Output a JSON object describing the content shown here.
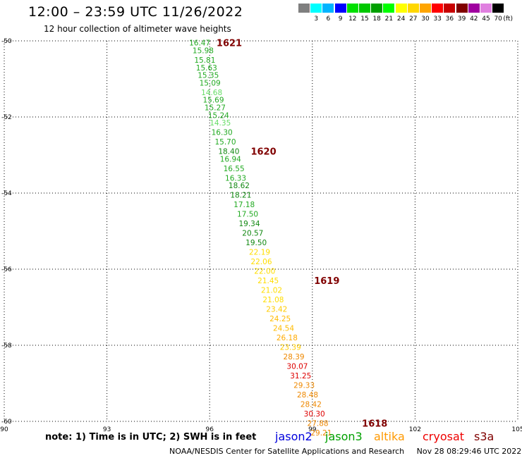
{
  "header": {
    "title": "12:00 – 23:59 UTC 11/26/2022",
    "subtitle": "12 hour collection of altimeter wave heights"
  },
  "color_scale": {
    "unit_label": "(ft)",
    "bins": [
      {
        "label": "",
        "color": "#7f7f7f"
      },
      {
        "label": "3",
        "color": "#00ffff"
      },
      {
        "label": "6",
        "color": "#00b4ff"
      },
      {
        "label": "9",
        "color": "#0000ff"
      },
      {
        "label": "12",
        "color": "#00e000"
      },
      {
        "label": "15",
        "color": "#00c800"
      },
      {
        "label": "18",
        "color": "#00a000"
      },
      {
        "label": "21",
        "color": "#00ff00"
      },
      {
        "label": "24",
        "color": "#ffff00"
      },
      {
        "label": "27",
        "color": "#ffd700"
      },
      {
        "label": "30",
        "color": "#ffa500"
      },
      {
        "label": "33",
        "color": "#ff0000"
      },
      {
        "label": "36",
        "color": "#c80000"
      },
      {
        "label": "39",
        "color": "#800000"
      },
      {
        "label": "42",
        "color": "#a000a0"
      },
      {
        "label": "45",
        "color": "#e080e0"
      },
      {
        "label": "70",
        "color": "#000000"
      }
    ]
  },
  "chart_data": {
    "type": "scatter",
    "xlim": [
      90,
      105
    ],
    "ylim": [
      -60,
      -50
    ],
    "x_ticks": [
      "90",
      "93",
      "96",
      "99",
      "102",
      "105"
    ],
    "y_ticks": [
      "-50",
      "-52",
      "-54",
      "-56",
      "-58",
      "-60"
    ],
    "grid": true,
    "points": [
      {
        "lon": 95.4,
        "lat": -50.05,
        "swh": "16.47",
        "color": "#22aa22"
      },
      {
        "lon": 95.5,
        "lat": -50.25,
        "swh": "15.98",
        "color": "#22aa22"
      },
      {
        "lon": 95.55,
        "lat": -50.5,
        "swh": "15.81",
        "color": "#22aa22"
      },
      {
        "lon": 95.6,
        "lat": -50.7,
        "swh": "15.63",
        "color": "#22aa22"
      },
      {
        "lon": 95.65,
        "lat": -50.9,
        "swh": "15.35",
        "color": "#22aa22"
      },
      {
        "lon": 95.7,
        "lat": -51.1,
        "swh": "15.09",
        "color": "#22aa22"
      },
      {
        "lon": 95.75,
        "lat": -51.35,
        "swh": "14.68",
        "color": "#66dd66"
      },
      {
        "lon": 95.8,
        "lat": -51.55,
        "swh": "15.69",
        "color": "#22aa22"
      },
      {
        "lon": 95.85,
        "lat": -51.75,
        "swh": "15.27",
        "color": "#22aa22"
      },
      {
        "lon": 95.95,
        "lat": -51.95,
        "swh": "15.24",
        "color": "#22aa22"
      },
      {
        "lon": 96.0,
        "lat": -52.15,
        "swh": "14.35",
        "color": "#66dd66"
      },
      {
        "lon": 96.05,
        "lat": -52.4,
        "swh": "16.30",
        "color": "#22aa22"
      },
      {
        "lon": 96.15,
        "lat": -52.65,
        "swh": "15.70",
        "color": "#22aa22"
      },
      {
        "lon": 96.25,
        "lat": -52.9,
        "swh": "18.40",
        "color": "#118811"
      },
      {
        "lon": 96.3,
        "lat": -53.1,
        "swh": "16.94",
        "color": "#22aa22"
      },
      {
        "lon": 96.4,
        "lat": -53.35,
        "swh": "16.55",
        "color": "#22aa22"
      },
      {
        "lon": 96.45,
        "lat": -53.6,
        "swh": "16.33",
        "color": "#22aa22"
      },
      {
        "lon": 96.55,
        "lat": -53.8,
        "swh": "18.62",
        "color": "#118811"
      },
      {
        "lon": 96.6,
        "lat": -54.05,
        "swh": "18.21",
        "color": "#118811"
      },
      {
        "lon": 96.7,
        "lat": -54.3,
        "swh": "17.18",
        "color": "#22aa22"
      },
      {
        "lon": 96.8,
        "lat": -54.55,
        "swh": "17.50",
        "color": "#22aa22"
      },
      {
        "lon": 96.85,
        "lat": -54.8,
        "swh": "19.34",
        "color": "#118811"
      },
      {
        "lon": 96.95,
        "lat": -55.05,
        "swh": "20.57",
        "color": "#118811"
      },
      {
        "lon": 97.05,
        "lat": -55.3,
        "swh": "19.50",
        "color": "#118811"
      },
      {
        "lon": 97.15,
        "lat": -55.55,
        "swh": "22.19",
        "color": "#ffdd00"
      },
      {
        "lon": 97.2,
        "lat": -55.8,
        "swh": "22.06",
        "color": "#ffdd00"
      },
      {
        "lon": 97.3,
        "lat": -56.05,
        "swh": "22.00",
        "color": "#ffdd00"
      },
      {
        "lon": 97.4,
        "lat": -56.3,
        "swh": "21.45",
        "color": "#ffdd00"
      },
      {
        "lon": 97.5,
        "lat": -56.55,
        "swh": "21.02",
        "color": "#ffdd00"
      },
      {
        "lon": 97.55,
        "lat": -56.8,
        "swh": "21.08",
        "color": "#ffdd00"
      },
      {
        "lon": 97.65,
        "lat": -57.05,
        "swh": "23.42",
        "color": "#ffcc00"
      },
      {
        "lon": 97.75,
        "lat": -57.3,
        "swh": "24.25",
        "color": "#ffbb00"
      },
      {
        "lon": 97.85,
        "lat": -57.55,
        "swh": "24.54",
        "color": "#ffbb00"
      },
      {
        "lon": 97.95,
        "lat": -57.8,
        "swh": "26.18",
        "color": "#ffaa00"
      },
      {
        "lon": 98.05,
        "lat": -58.05,
        "swh": "23.39",
        "color": "#ffcc00"
      },
      {
        "lon": 98.15,
        "lat": -58.3,
        "swh": "28.39",
        "color": "#ee8800"
      },
      {
        "lon": 98.25,
        "lat": -58.55,
        "swh": "30.07",
        "color": "#dd0000"
      },
      {
        "lon": 98.35,
        "lat": -58.8,
        "swh": "31.25",
        "color": "#dd0000"
      },
      {
        "lon": 98.45,
        "lat": -59.05,
        "swh": "29.33",
        "color": "#ee8800"
      },
      {
        "lon": 98.55,
        "lat": -59.3,
        "swh": "28.48",
        "color": "#ee8800"
      },
      {
        "lon": 98.65,
        "lat": -59.55,
        "swh": "28.42",
        "color": "#ee8800"
      },
      {
        "lon": 98.75,
        "lat": -59.8,
        "swh": "30.30",
        "color": "#dd0000"
      },
      {
        "lon": 98.85,
        "lat": -60.05,
        "swh": "27.88",
        "color": "#ee8800"
      },
      {
        "lon": 98.95,
        "lat": -60.3,
        "swh": "29.21",
        "color": "#ee8800"
      }
    ],
    "time_labels": [
      {
        "text": "1621",
        "lon": 96.2,
        "lat": -50.05
      },
      {
        "text": "1620",
        "lon": 97.2,
        "lat": -52.9
      },
      {
        "text": "1619",
        "lon": 99.05,
        "lat": -56.3
      },
      {
        "text": "1618",
        "lon": 100.45,
        "lat": -60.05
      }
    ],
    "time_label_color": "#800000"
  },
  "footer": {
    "note": "note:  1) Time is in UTC;  2) SWH is in feet",
    "satellites": [
      {
        "name": "jason2",
        "color": "#0000dd"
      },
      {
        "name": "jason3",
        "color": "#00a000"
      },
      {
        "name": "altika",
        "color": "#ff9900"
      },
      {
        "name": "cryosat",
        "color": "#ee0000"
      },
      {
        "name": "s3a",
        "color": "#800000"
      }
    ],
    "credit_org": "NOAA/NESDIS Center for Satellite Applications and Research",
    "credit_time": "Nov 28 08:29:46 UTC 2022"
  }
}
